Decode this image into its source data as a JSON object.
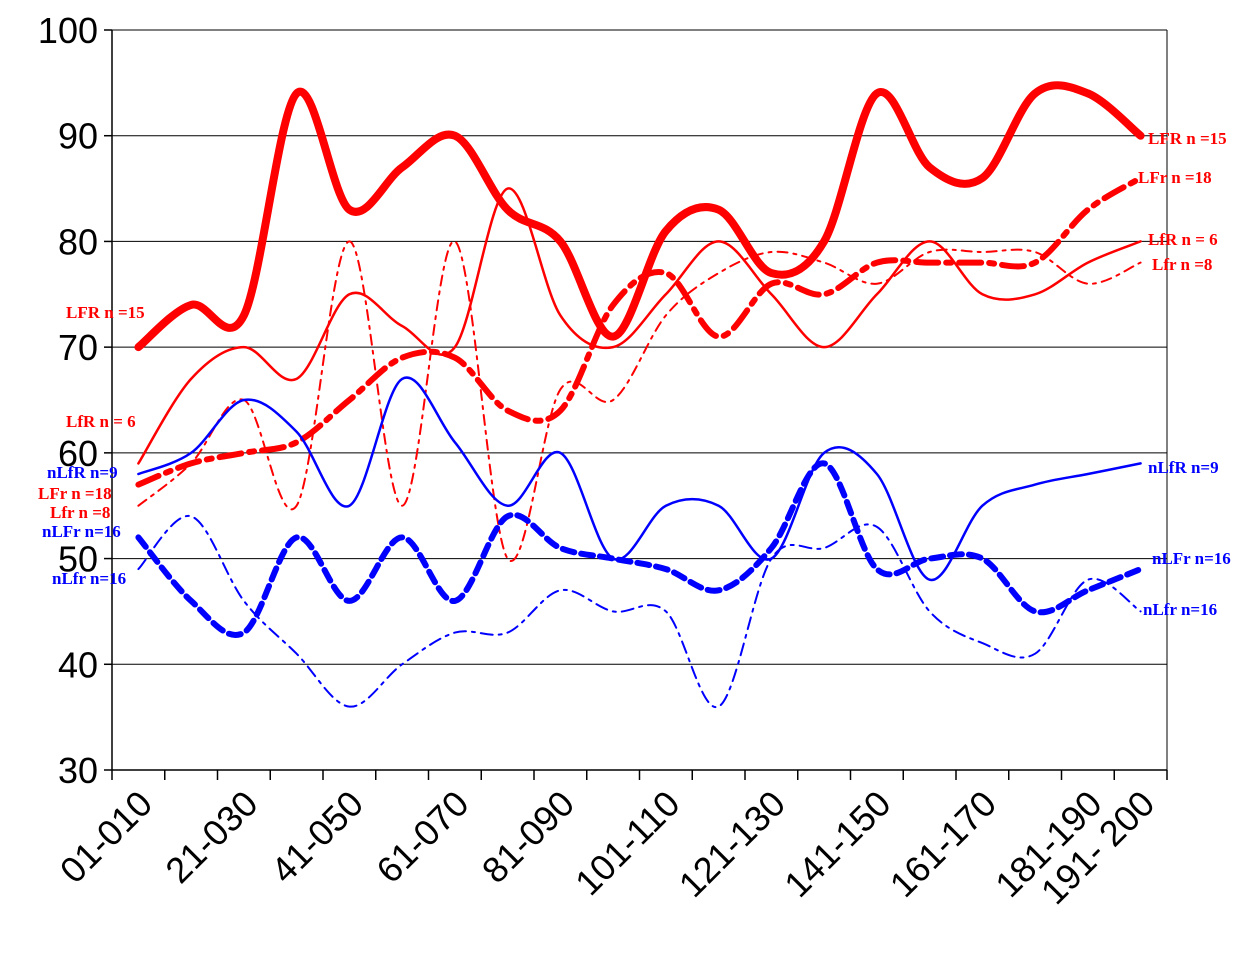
{
  "chart_data": {
    "type": "line",
    "title": "",
    "xlabel": "",
    "ylabel": "",
    "ylim": [
      30,
      100
    ],
    "yticks": [
      30,
      40,
      50,
      60,
      70,
      80,
      90,
      100
    ],
    "grid": "horizontal",
    "legend": "inline labels at line ends",
    "x": [
      1,
      2,
      3,
      4,
      5,
      6,
      7,
      8,
      9,
      10,
      11,
      12,
      13,
      14,
      15,
      16,
      17,
      18,
      19,
      20
    ],
    "x_tick_labels": [
      "01-010",
      "21-030",
      "41-050",
      "61-070",
      "81-090",
      "101-110",
      "121-130",
      "141-150",
      "161-170",
      "181-190",
      "191- 200"
    ],
    "x_tick_label_positions": [
      1,
      3,
      5,
      7,
      9,
      11,
      13,
      15,
      17,
      19,
      20
    ],
    "series": [
      {
        "name": "LFR n =15",
        "label_left": "LFR n =15",
        "label_right": "LFR n =15",
        "color": "#ff0000",
        "width": 8,
        "dash": "",
        "values": [
          70,
          74,
          73,
          94,
          83,
          87,
          90,
          83,
          80,
          71,
          81,
          83,
          77,
          80,
          94,
          87,
          86,
          94,
          94,
          90
        ]
      },
      {
        "name": "LFr n =18",
        "label_left": "LFr  n =18",
        "label_right": "LFr  n =18",
        "color": "#ff0000",
        "width": 6,
        "dash": "22 8 5 8",
        "values": [
          57,
          59,
          60,
          61,
          65,
          69,
          69,
          64,
          64,
          74,
          77,
          71,
          76,
          75,
          78,
          78,
          78,
          78,
          83,
          86
        ]
      },
      {
        "name": "LfR n = 6",
        "label_left": "LfR n =  6",
        "label_right": "LfR n =  6",
        "color": "#ff0000",
        "width": 2.5,
        "dash": "",
        "values": [
          59,
          67,
          70,
          67,
          75,
          72,
          70,
          85,
          73,
          70,
          75,
          80,
          75,
          70,
          75,
          80,
          75,
          75,
          78,
          80
        ]
      },
      {
        "name": "Lfr n =8",
        "label_left": "Lfr  n =8",
        "label_right": "Lfr  n =8",
        "color": "#ff0000",
        "width": 2,
        "dash": "10 6 3 6",
        "values": [
          55,
          59,
          65,
          55,
          80,
          55,
          80,
          50,
          66,
          65,
          73,
          77,
          79,
          78,
          76,
          79,
          79,
          79,
          76,
          78
        ]
      },
      {
        "name": "nLfR n=9",
        "label_left": "nLfR n=9",
        "label_right": "nLfR n=9",
        "color": "#0000ff",
        "width": 2.5,
        "dash": "",
        "values": [
          58,
          60,
          65,
          62,
          55,
          67,
          61,
          55,
          60,
          50,
          55,
          55,
          50,
          60,
          58,
          48,
          55,
          57,
          58,
          59
        ]
      },
      {
        "name": "nLFr n=16",
        "label_left": "nLFr n=16",
        "label_right": "nLFr n=16",
        "color": "#0000ff",
        "width": 6,
        "dash": "12 7",
        "values": [
          52,
          46,
          43,
          52,
          46,
          52,
          46,
          54,
          51,
          50,
          49,
          47,
          51,
          59,
          49,
          50,
          50,
          45,
          47,
          49
        ]
      },
      {
        "name": "nLfr n=16",
        "label_left": "nLfr n=16",
        "label_right": "nLfr n=16",
        "color": "#0000ff",
        "width": 2,
        "dash": "12 6 3 6",
        "values": [
          49,
          54,
          46,
          41,
          36,
          40,
          43,
          43,
          47,
          45,
          45,
          36,
          50,
          51,
          53,
          45,
          42,
          41,
          48,
          45
        ]
      }
    ]
  }
}
